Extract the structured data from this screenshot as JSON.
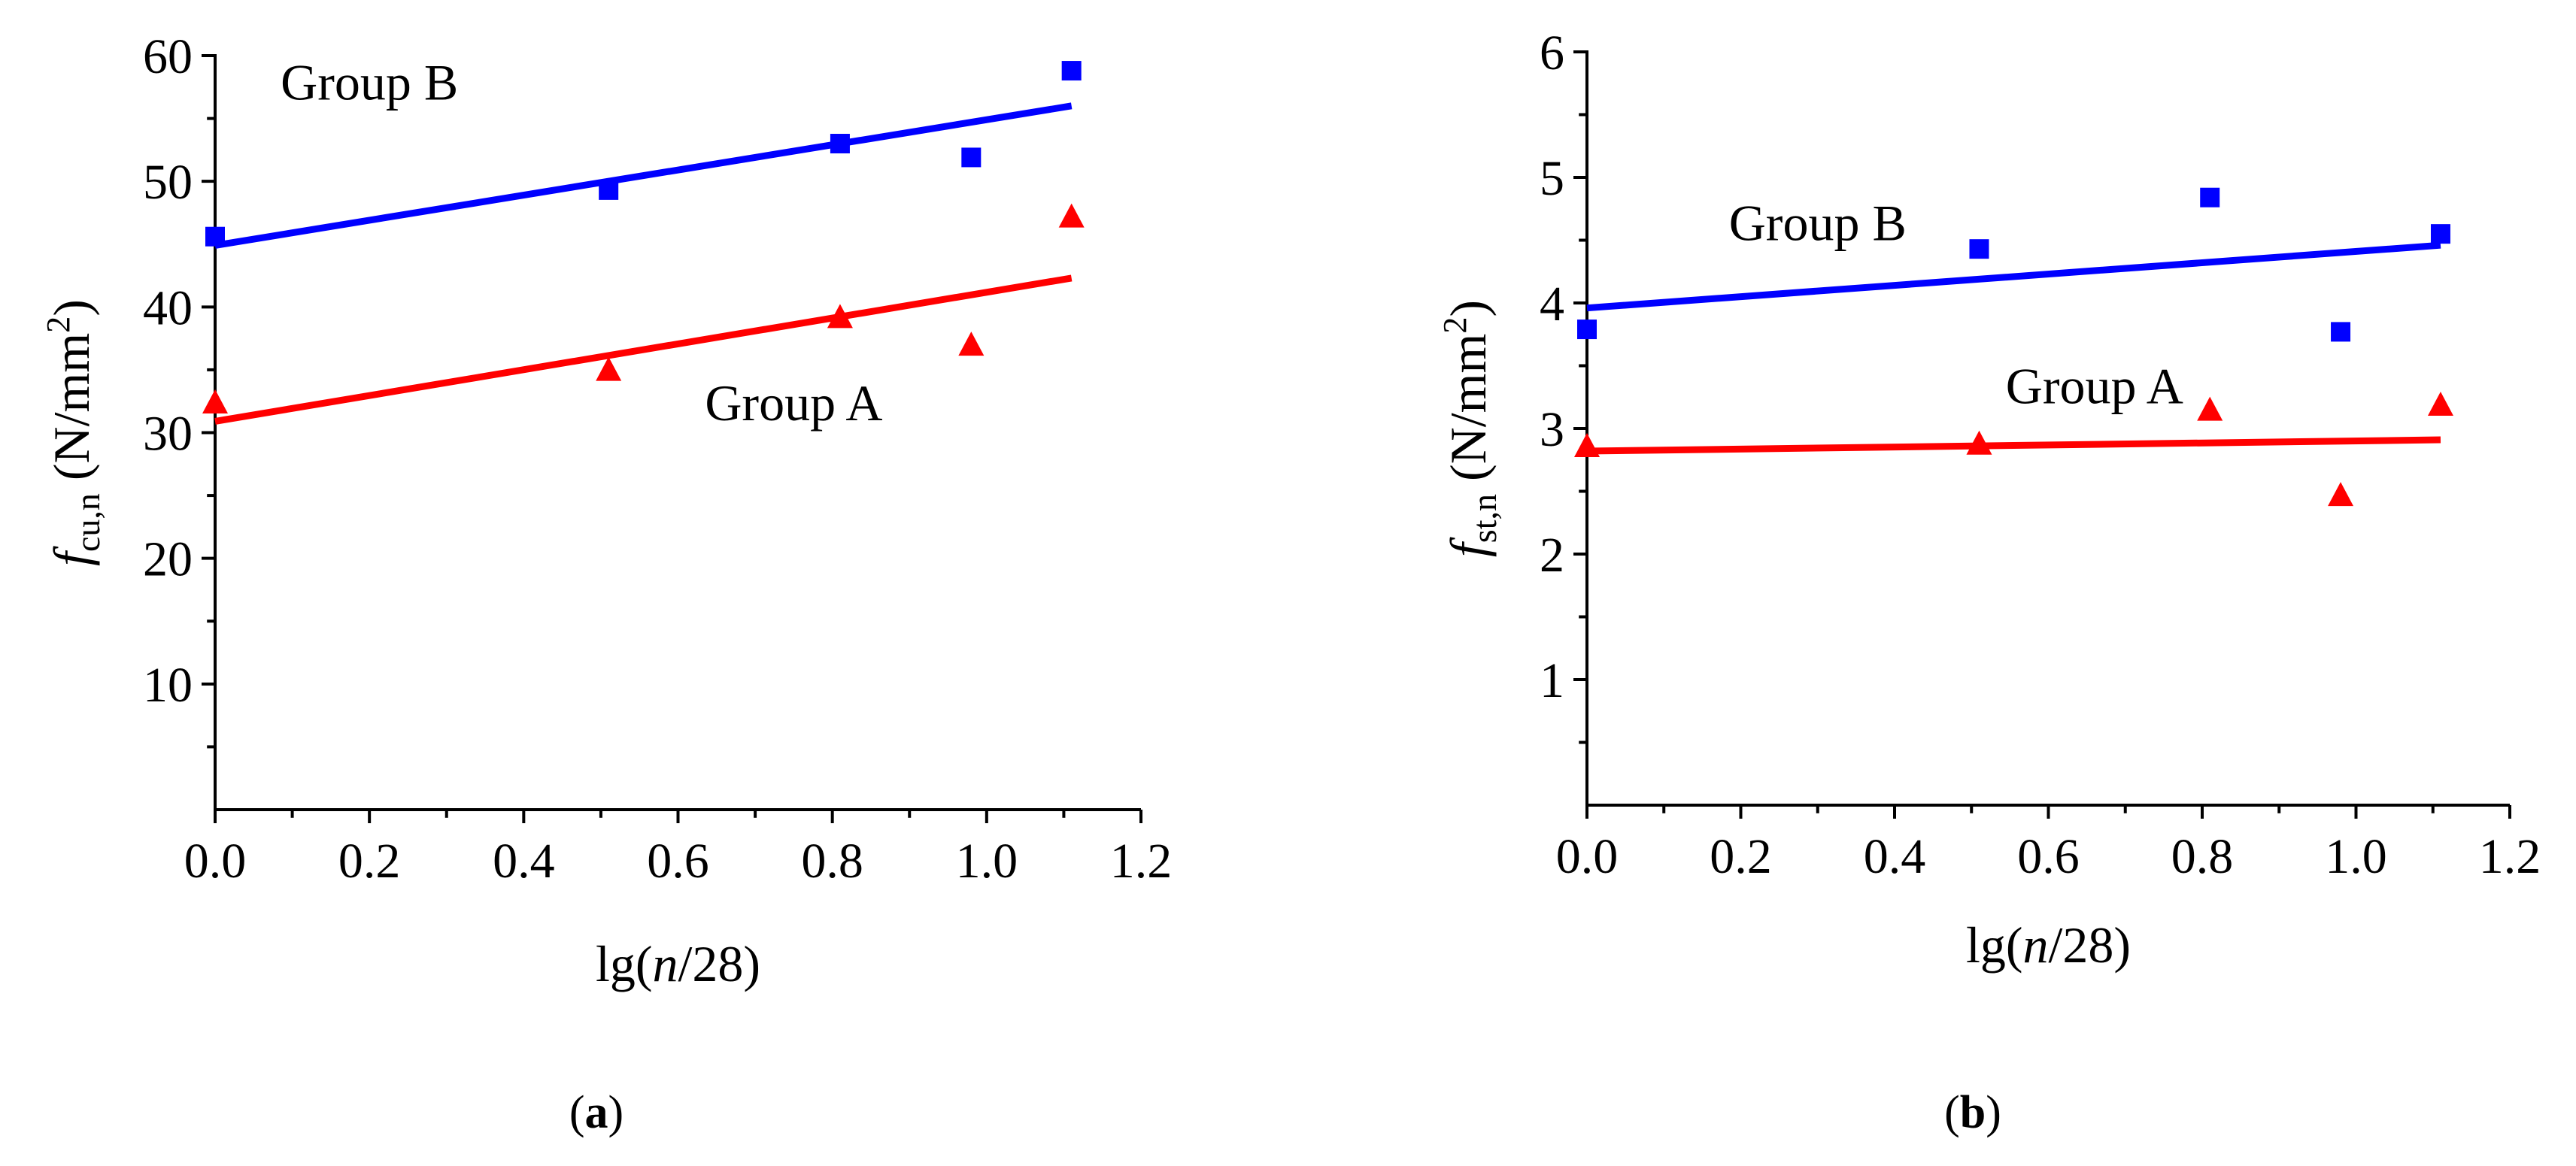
{
  "chart_data": [
    {
      "type": "scatter",
      "panel": "a",
      "caption_open": "(",
      "caption_letter": "a",
      "caption_close": ")",
      "xlabel": {
        "pre": "lg(",
        "italic": "n",
        "post": "/28)"
      },
      "ylabel": {
        "f": "f",
        "sub": "cu,n",
        "unit_pre": "(N/mm",
        "sup": "2",
        "unit_post": ")"
      },
      "xlim": [
        0.0,
        1.2
      ],
      "ylim": [
        0,
        60
      ],
      "xticks": [
        0.0,
        0.2,
        0.4,
        0.6,
        0.8,
        1.0,
        1.2
      ],
      "xtick_labels": [
        "0.0",
        "0.2",
        "0.4",
        "0.6",
        "0.8",
        "1.0",
        "1.2"
      ],
      "yticks": [
        10,
        20,
        30,
        40,
        50,
        60
      ],
      "ytick_labels": [
        "10",
        "20",
        "30",
        "40",
        "50",
        "60"
      ],
      "series": [
        {
          "name": "Group B",
          "marker": "square",
          "color": "#0000ff",
          "x": [
            0.0,
            0.51,
            0.81,
            0.98,
            1.11
          ],
          "y": [
            45.6,
            49.3,
            53.0,
            51.9,
            58.8
          ],
          "fit": {
            "x": [
              0.0,
              1.11
            ],
            "y": [
              44.9,
              56.0
            ]
          },
          "label_at": {
            "x": 0.2,
            "y": 56.5
          }
        },
        {
          "name": "Group A",
          "marker": "triangle",
          "color": "#ff0000",
          "x": [
            0.0,
            0.51,
            0.81,
            0.98,
            1.11
          ],
          "y": [
            32.3,
            34.9,
            39.1,
            36.9,
            47.1
          ],
          "fit": {
            "x": [
              0.0,
              1.11
            ],
            "y": [
              30.9,
              42.3
            ]
          },
          "label_at": {
            "x": 0.75,
            "y": 31.0
          }
        }
      ]
    },
    {
      "type": "scatter",
      "panel": "b",
      "caption_open": "(",
      "caption_letter": "b",
      "caption_close": ")",
      "xlabel": {
        "pre": "lg(",
        "italic": "n",
        "post": "/28)"
      },
      "ylabel": {
        "f": "f",
        "sub": "st,n",
        "unit_pre": "(N/mm",
        "sup": "2",
        "unit_post": ")"
      },
      "xlim": [
        0.0,
        1.2
      ],
      "ylim": [
        0,
        6
      ],
      "xticks": [
        0.0,
        0.2,
        0.4,
        0.6,
        0.8,
        1.0,
        1.2
      ],
      "xtick_labels": [
        "0.0",
        "0.2",
        "0.4",
        "0.6",
        "0.8",
        "1.0",
        "1.2"
      ],
      "yticks": [
        1,
        2,
        3,
        4,
        5,
        6
      ],
      "ytick_labels": [
        "1",
        "2",
        "3",
        "4",
        "5",
        "6"
      ],
      "series": [
        {
          "name": "Group B",
          "marker": "square",
          "color": "#0000ff",
          "x": [
            0.0,
            0.51,
            0.81,
            0.98,
            1.11
          ],
          "y": [
            3.79,
            4.43,
            4.84,
            3.77,
            4.55
          ],
          "fit": {
            "x": [
              0.0,
              1.11
            ],
            "y": [
              3.96,
              4.46
            ]
          },
          "label_at": {
            "x": 0.3,
            "y": 4.5
          }
        },
        {
          "name": "Group A",
          "marker": "triangle",
          "color": "#ff0000",
          "x": [
            0.0,
            0.51,
            0.81,
            0.98,
            1.11
          ],
          "y": [
            2.85,
            2.87,
            3.14,
            2.46,
            3.18
          ],
          "fit": {
            "x": [
              0.0,
              1.11
            ],
            "y": [
              2.82,
              2.91
            ]
          },
          "label_at": {
            "x": 0.66,
            "y": 3.2
          }
        }
      ]
    }
  ]
}
